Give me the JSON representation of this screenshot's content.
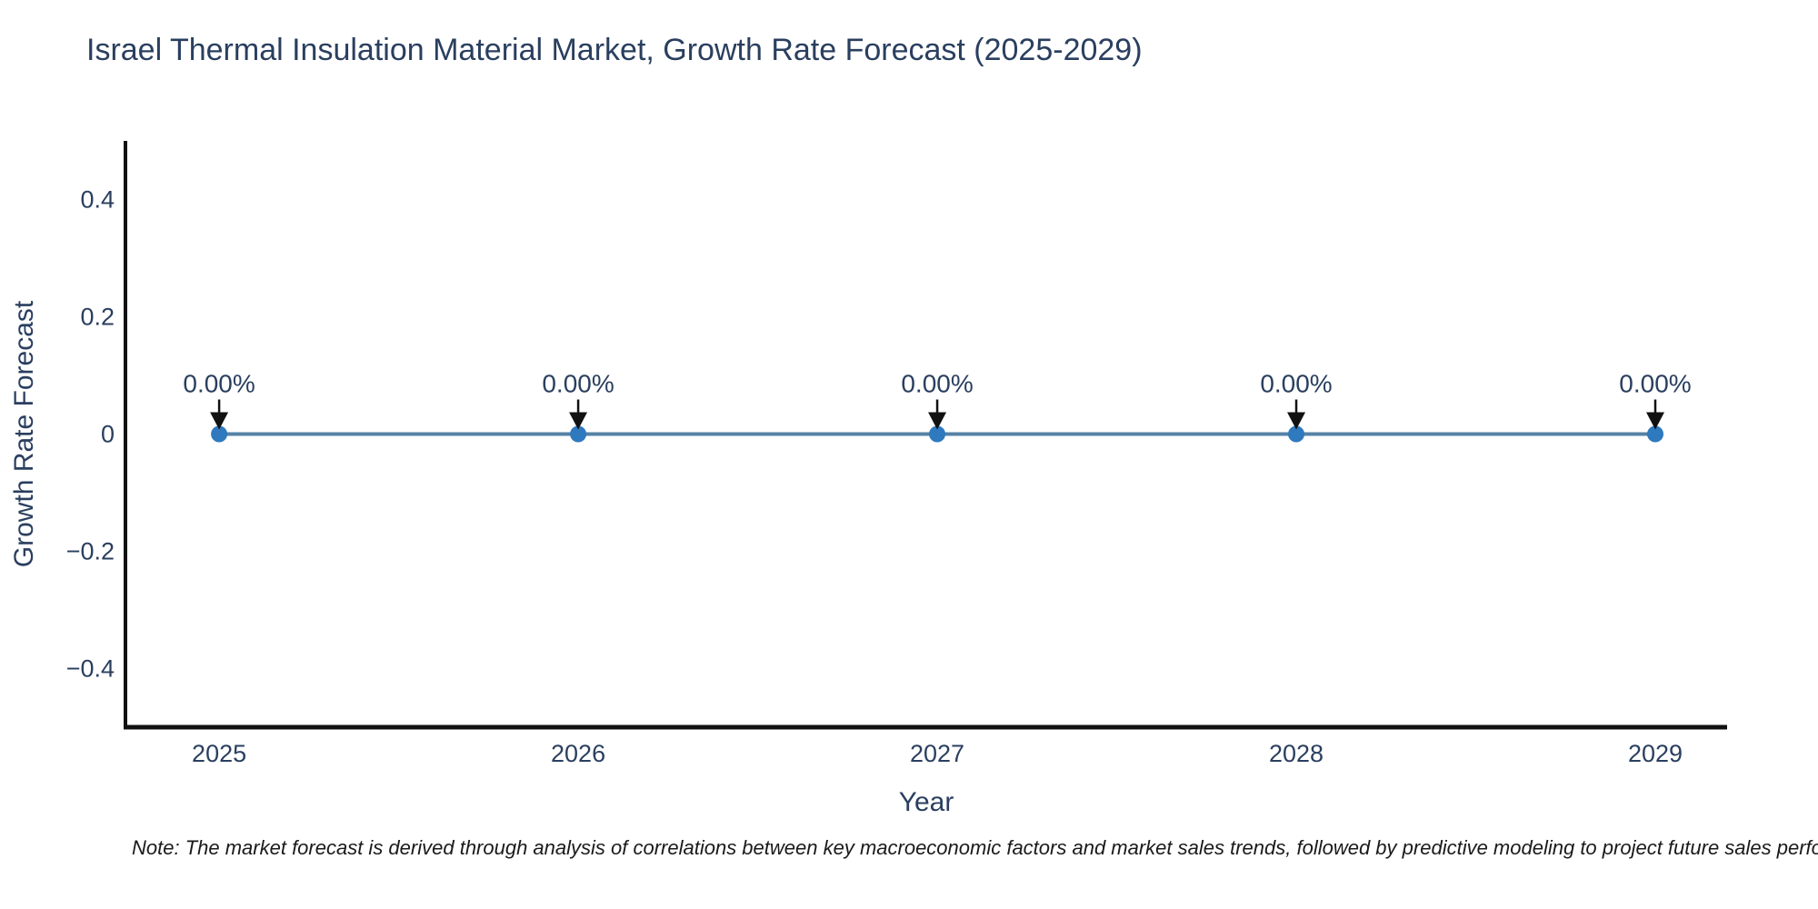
{
  "title": "Israel Thermal Insulation Material Market, Growth Rate Forecast (2025-2029)",
  "note": "Note: The market forecast is derived through analysis of correlations between key macroeconomic factors and market sales trends, followed by predictive modeling to project future sales performance.",
  "chart_data": {
    "type": "line",
    "title": "Israel Thermal Insulation Material Market, Growth Rate Forecast (2025-2029)",
    "x": [
      2025,
      2026,
      2027,
      2028,
      2029
    ],
    "series": [
      {
        "name": "Growth Rate Forecast",
        "values": [
          0,
          0,
          0,
          0,
          0
        ]
      }
    ],
    "point_labels": [
      "0.00%",
      "0.00%",
      "0.00%",
      "0.00%",
      "0.00%"
    ],
    "xlabel": "Year",
    "ylabel": "Growth Rate Forecast",
    "xlim": [
      2024.739,
      2029.2
    ],
    "ylim": [
      -0.5,
      0.5
    ],
    "yticks": [
      0.4,
      0.2,
      0,
      -0.2,
      -0.4
    ],
    "xticks": [
      2025,
      2026,
      2027,
      2028,
      2029
    ],
    "grid": false,
    "legend": "none",
    "colors": {
      "line": "#5682a6",
      "marker": "#2f79be",
      "axis": "#111111",
      "text": "#2a3f5f",
      "arrow": "#111111"
    }
  }
}
